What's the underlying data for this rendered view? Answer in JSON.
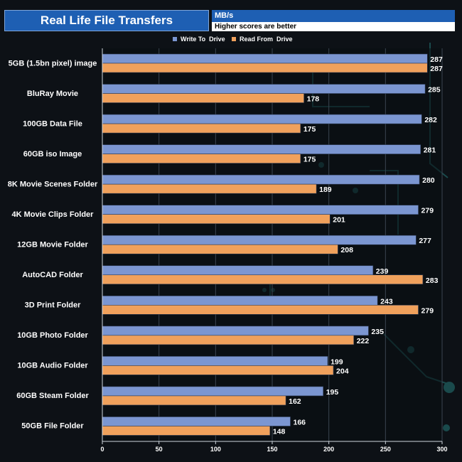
{
  "header": {
    "title": "Real Life File Transfers",
    "units": "MB/s",
    "note": "Higher scores are better"
  },
  "chart_data": {
    "type": "bar",
    "orientation": "horizontal",
    "title": "Real Life File Transfers",
    "xlabel": "MB/s",
    "ylabel": "",
    "xlim": [
      0,
      300
    ],
    "xticks": [
      0,
      50,
      100,
      150,
      200,
      250,
      300
    ],
    "legend_position": "top",
    "categories": [
      "5GB (1.5bn pixel) image",
      "BluRay Movie",
      "100GB Data File",
      "60GB iso Image",
      "8K Movie Scenes Folder",
      "4K Movie Clips Folder",
      "12GB Movie Folder",
      "AutoCAD Folder",
      "3D Print Folder",
      "10GB Photo Folder",
      "10GB Audio Folder",
      "60GB Steam Folder",
      "50GB File Folder"
    ],
    "series": [
      {
        "name": "Write To  Drive",
        "color": "#7b96d1",
        "values": [
          287,
          285,
          282,
          281,
          280,
          279,
          277,
          239,
          243,
          235,
          199,
          195,
          166
        ]
      },
      {
        "name": "Read From  Drive",
        "color": "#f0a15c",
        "values": [
          287,
          178,
          175,
          175,
          189,
          201,
          208,
          283,
          279,
          222,
          204,
          162,
          148
        ]
      }
    ]
  },
  "colors": {
    "background": "#0d1116",
    "plot_background": "#0a0e13",
    "title_bar": "#1e5fb3",
    "circuit": "#1a4a4c"
  }
}
